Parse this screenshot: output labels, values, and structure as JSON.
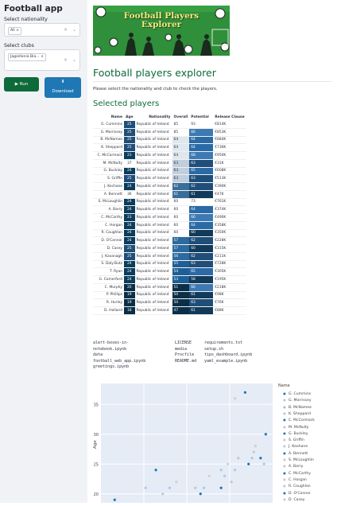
{
  "sidebar": {
    "title": "Football app",
    "nationality_label": "Select nationality",
    "nationality_tag": "All",
    "clubs_label": "Select clubs",
    "clubs_tag": "Jagiellonia Bia...",
    "run_label": "▶ Run",
    "download_label": "Download",
    "download_icon": "⬇",
    "accent": "#0e6a3a",
    "download_color": "#1f77b4"
  },
  "banner": {
    "title_line1": "Football Players",
    "title_line2": "Explorer"
  },
  "main": {
    "title": "Football players explorer",
    "instructions": "Please select the nationality and club to check the players.",
    "selected_heading": "Selected players"
  },
  "table": {
    "columns": [
      "Name",
      "Age",
      "Nationality",
      "Overall",
      "Potential",
      "Release Clause"
    ],
    "rows": [
      {
        "name": "G. Cummins",
        "age": 25,
        "nat": "Republic of Ireland",
        "ov": 85,
        "pot": 93,
        "rel": "€814K"
      },
      {
        "name": "G. Morrissey",
        "age": 25,
        "nat": "Republic of Ireland",
        "ov": 85,
        "pot": 66,
        "rel": "€853K"
      },
      {
        "name": "B. McNamee",
        "age": 25,
        "nat": "Republic of Ireland",
        "ov": 64,
        "pot": 64,
        "rel": "€884K"
      },
      {
        "name": "K. Sheppard",
        "age": 25,
        "nat": "Republic of Ireland",
        "ov": 64,
        "pot": 64,
        "rel": "€736K"
      },
      {
        "name": "C. McCormack",
        "age": 23,
        "nat": "Republic of Ireland",
        "ov": 64,
        "pot": 68,
        "rel": "€950K"
      },
      {
        "name": "M. McNulty",
        "age": 37,
        "nat": "Republic of Ireland",
        "ov": 63,
        "pot": 63,
        "rel": "€31K"
      },
      {
        "name": "G. Buckley",
        "age": 24,
        "nat": "Republic of Ireland",
        "ov": 63,
        "pot": 65,
        "rel": "€608K"
      },
      {
        "name": "S. Griffin",
        "age": 25,
        "nat": "Republic of Ireland",
        "ov": 63,
        "pot": 63,
        "rel": "€513K"
      },
      {
        "name": "J. Kechane",
        "age": 24,
        "nat": "Republic of Ireland",
        "ov": 62,
        "pot": 62,
        "rel": "€390K"
      },
      {
        "name": "A. Bennett",
        "age": 36,
        "nat": "Republic of Ireland",
        "ov": 61,
        "pot": 61,
        "rel": "€47K"
      },
      {
        "name": "S. McLoughlin",
        "age": 24,
        "nat": "Republic of Ireland",
        "ov": 60,
        "pot": 73,
        "rel": "€761K"
      },
      {
        "name": "A. Barry",
        "age": 24,
        "nat": "Republic of Ireland",
        "ov": 60,
        "pot": 64,
        "rel": "€374K"
      },
      {
        "name": "C. McCarthy",
        "age": 23,
        "nat": "Republic of Ireland",
        "ov": 60,
        "pot": 66,
        "rel": "€490K"
      },
      {
        "name": "C. Horgan",
        "age": 24,
        "nat": "Republic of Ireland",
        "ov": 60,
        "pot": 64,
        "rel": "€358K"
      },
      {
        "name": "R. Coughlan",
        "age": 24,
        "nat": "Republic of Ireland",
        "ov": 60,
        "pot": 60,
        "rel": "€350K"
      },
      {
        "name": "D. O'Connor",
        "age": 24,
        "nat": "Republic of Ireland",
        "ov": 57,
        "pot": 62,
        "rel": "€228K"
      },
      {
        "name": "D. Casey",
        "age": 25,
        "nat": "Republic of Ireland",
        "ov": 57,
        "pot": 60,
        "rel": "€315K"
      },
      {
        "name": "J. Kavanagh",
        "age": 25,
        "nat": "Republic of Ireland",
        "ov": 56,
        "pot": 62,
        "rel": "€211K"
      },
      {
        "name": "S. Daly-Butz",
        "age": 24,
        "nat": "Republic of Ireland",
        "ov": 55,
        "pot": 63,
        "rel": "€728K"
      },
      {
        "name": "T. Ryan",
        "age": 24,
        "nat": "Republic of Ireland",
        "ov": 54,
        "pot": 65,
        "rel": "€305K"
      },
      {
        "name": "G. Comerford",
        "age": 24,
        "nat": "Republic of Ireland",
        "ov": 53,
        "pot": 58,
        "rel": "€195K"
      },
      {
        "name": "C. Murphy",
        "age": 20,
        "nat": "Republic of Ireland",
        "ov": 51,
        "pot": 66,
        "rel": "€218K"
      },
      {
        "name": "P. Phillips",
        "age": 19,
        "nat": "Republic of Ireland",
        "ov": 50,
        "pot": 61,
        "rel": "€98K"
      },
      {
        "name": "R. Hurley",
        "age": 19,
        "nat": "Republic of Ireland",
        "ov": 50,
        "pot": 63,
        "rel": "€76K"
      },
      {
        "name": "D. Holland",
        "age": 18,
        "nat": "Republic of Ireland",
        "ov": 47,
        "pot": 61,
        "rel": "€88K"
      }
    ]
  },
  "files": {
    "col1": [
      "alert-boxes-in-notebook.ipynb",
      "data",
      "football_web_app.ipynb",
      "greetings.ipynb"
    ],
    "col2": [
      "LICENSE",
      "media",
      "Procfile",
      "README.md"
    ],
    "col3": [
      "requirements.txt",
      "setup.sh",
      "tips_dashboard.ipynb",
      "yaml_example.ipynb"
    ]
  },
  "chart_data": {
    "type": "scatter",
    "ylabel": "Age",
    "ticks_y": [
      20,
      25,
      30,
      35
    ],
    "ylim": [
      18.5,
      38.5
    ],
    "legend_title": "Name",
    "legend": [
      "G. Cummins",
      "G. Morrissey",
      "B. McNamee",
      "K. Sheppard",
      "C. McCormack",
      "M. McNulty",
      "G. Buckley",
      "S. Griffin",
      "J. Keohane",
      "A. Bennett",
      "S. McLoughlin",
      "A. Barry",
      "C. McCarthy",
      "C. Horgan",
      "R. Coughlan",
      "D. O'Connor",
      "D. Casey"
    ],
    "points": [
      {
        "x": 0.08,
        "age": 19,
        "color": "#1f77b4"
      },
      {
        "x": 0.26,
        "age": 21,
        "color": "#aec7e8"
      },
      {
        "x": 0.36,
        "age": 20,
        "color": "#c7c7c7"
      },
      {
        "x": 0.4,
        "age": 21,
        "color": "#aec7e8"
      },
      {
        "x": 0.44,
        "age": 22,
        "color": "#d0d0d0"
      },
      {
        "x": 0.32,
        "age": 24,
        "color": "#1f77b4"
      },
      {
        "x": 0.55,
        "age": 21,
        "color": "#c7c7c7"
      },
      {
        "x": 0.58,
        "age": 20,
        "color": "#1f77b4"
      },
      {
        "x": 0.6,
        "age": 21,
        "color": "#aec7e8"
      },
      {
        "x": 0.63,
        "age": 23,
        "color": "#d0d0d0"
      },
      {
        "x": 0.7,
        "age": 21,
        "color": "#1f77b4"
      },
      {
        "x": 0.72,
        "age": 23,
        "color": "#aec7e8"
      },
      {
        "x": 0.76,
        "age": 22,
        "color": "#c7c7c7"
      },
      {
        "x": 0.7,
        "age": 24,
        "color": "#aec7e8"
      },
      {
        "x": 0.74,
        "age": 25,
        "color": "#d0d0d0"
      },
      {
        "x": 0.78,
        "age": 24,
        "color": "#aec7e8"
      },
      {
        "x": 0.8,
        "age": 26,
        "color": "#c7c7c7"
      },
      {
        "x": 0.86,
        "age": 25,
        "color": "#1f77b4"
      },
      {
        "x": 0.88,
        "age": 26,
        "color": "#aec7e8"
      },
      {
        "x": 0.9,
        "age": 28,
        "color": "#d0d0d0"
      },
      {
        "x": 0.93,
        "age": 26,
        "color": "#1f77b4"
      },
      {
        "x": 0.95,
        "age": 25,
        "color": "#aec7e8"
      },
      {
        "x": 0.96,
        "age": 30,
        "color": "#1f77b4"
      },
      {
        "x": 0.89,
        "age": 27,
        "color": "#c7c7c7"
      },
      {
        "x": 0.78,
        "age": 36,
        "color": "#d0d0d0"
      },
      {
        "x": 0.84,
        "age": 37,
        "color": "#1f77b4"
      }
    ]
  }
}
